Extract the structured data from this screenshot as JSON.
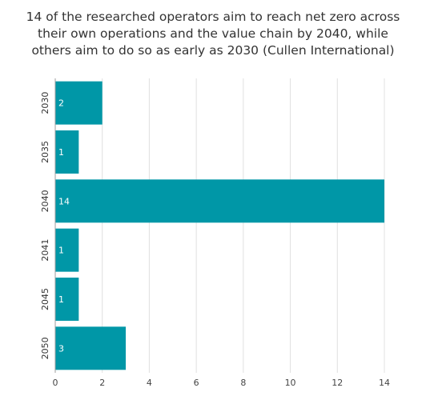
{
  "chart_data": {
    "type": "bar",
    "orientation": "horizontal",
    "title": "14 of the researched operators aim to reach net zero across their own operations and the value chain by 2040, while others aim to do so as early as 2030 (Cullen International)",
    "categories": [
      "2030",
      "2035",
      "2040",
      "2041",
      "2045",
      "2050"
    ],
    "values": [
      2,
      1,
      14,
      1,
      1,
      3
    ],
    "data_labels": [
      "2",
      "1",
      "14",
      "1",
      "1",
      "3"
    ],
    "xlim": [
      0,
      14
    ],
    "xticks": [
      0,
      2,
      4,
      6,
      8,
      10,
      12,
      14
    ],
    "xtick_labels": [
      "0",
      "2",
      "4",
      "6",
      "8",
      "10",
      "12",
      "14"
    ],
    "xlabel": "",
    "ylabel": "",
    "grid": "vertical",
    "legend": "none",
    "bar_color": "#0097a7",
    "grid_color": "#e0e0e0"
  }
}
